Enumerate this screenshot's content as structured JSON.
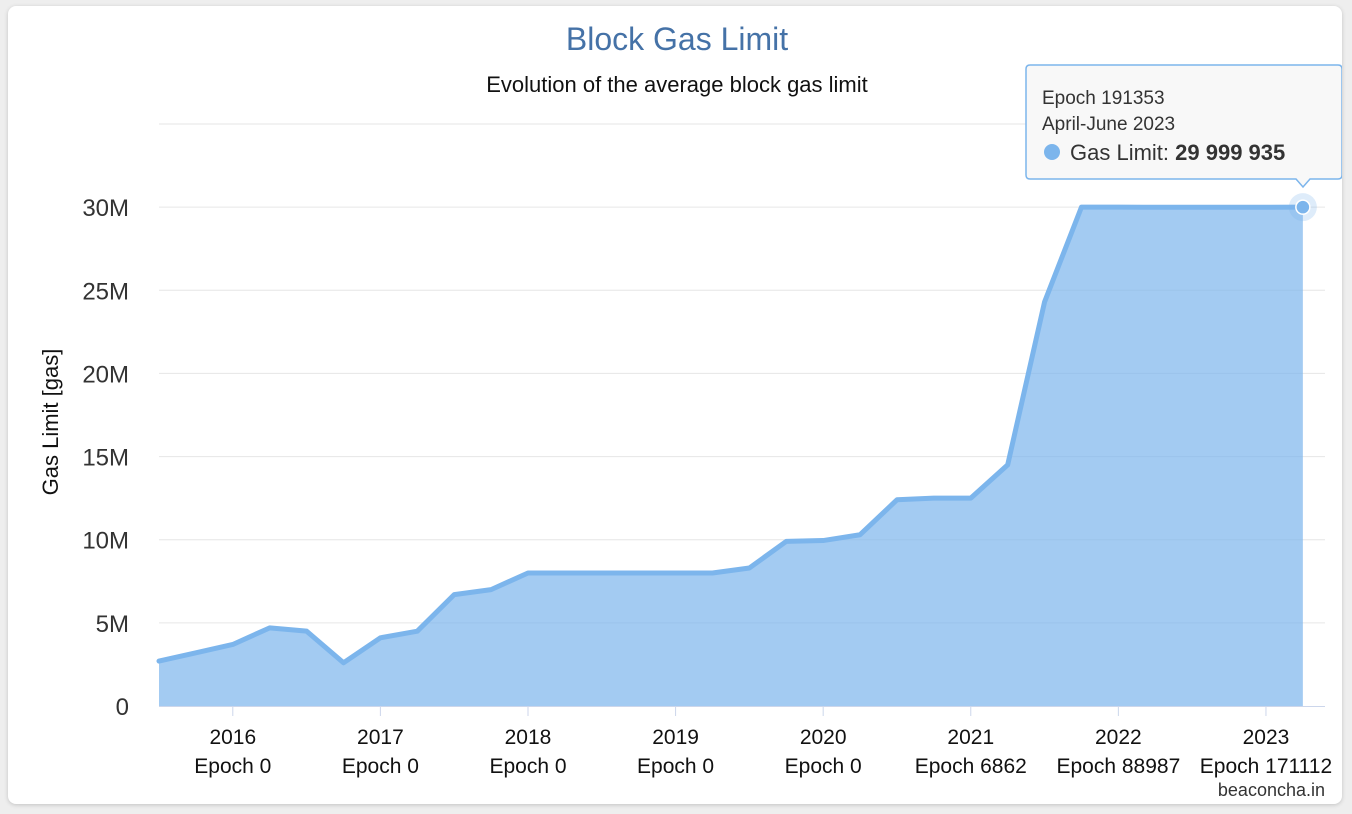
{
  "chart_data": {
    "type": "area",
    "title": "Block Gas Limit",
    "subtitle": "Evolution of the average block gas limit",
    "ylabel": "Gas Limit [gas]",
    "ylim": [
      0,
      35000000
    ],
    "yticks": [
      0,
      5000000,
      10000000,
      15000000,
      20000000,
      25000000,
      30000000
    ],
    "ytick_labels": [
      "0",
      "5M",
      "10M",
      "15M",
      "20M",
      "25M",
      "30M"
    ],
    "xlim": [
      2015.5,
      2023.4
    ],
    "xticks": [
      {
        "x": 2016,
        "year": "2016",
        "epoch": "Epoch 0"
      },
      {
        "x": 2017,
        "year": "2017",
        "epoch": "Epoch 0"
      },
      {
        "x": 2018,
        "year": "2018",
        "epoch": "Epoch 0"
      },
      {
        "x": 2019,
        "year": "2019",
        "epoch": "Epoch 0"
      },
      {
        "x": 2020,
        "year": "2020",
        "epoch": "Epoch 0"
      },
      {
        "x": 2021,
        "year": "2021",
        "epoch": "Epoch 6862"
      },
      {
        "x": 2022,
        "year": "2022",
        "epoch": "Epoch 88987"
      },
      {
        "x": 2023,
        "year": "2023",
        "epoch": "Epoch 171112"
      }
    ],
    "grid": true,
    "legend": "none",
    "color": "#7cb5ec",
    "series": [
      {
        "x": [
          2015.5,
          2015.75,
          2016.0,
          2016.25,
          2016.5,
          2016.75,
          2017.0,
          2017.25,
          2017.5,
          2017.75,
          2018.0,
          2018.25,
          2018.5,
          2018.75,
          2019.0,
          2019.25,
          2019.5,
          2019.75,
          2020.0,
          2020.25,
          2020.5,
          2020.75,
          2021.0,
          2021.25,
          2021.5,
          2021.75,
          2022.0,
          2022.25,
          2022.5,
          2022.75,
          2023.0,
          2023.25
        ],
        "y": [
          2700000,
          3200000,
          3700000,
          4700000,
          4500000,
          2600000,
          4100000,
          4500000,
          6700000,
          7000000,
          8000000,
          8000000,
          8000000,
          8000000,
          8000000,
          8000000,
          8300000,
          9900000,
          9950000,
          10300000,
          12400000,
          12500000,
          12500000,
          14500000,
          24300000,
          30000000,
          30000000,
          29990000,
          29990000,
          29990000,
          29990000,
          29999935
        ]
      }
    ],
    "tooltip": {
      "epoch": "Epoch 191353",
      "period": "April-June 2023",
      "series_name": "Gas Limit: ",
      "value": "29 999 935"
    },
    "credits": "beaconcha.in"
  }
}
